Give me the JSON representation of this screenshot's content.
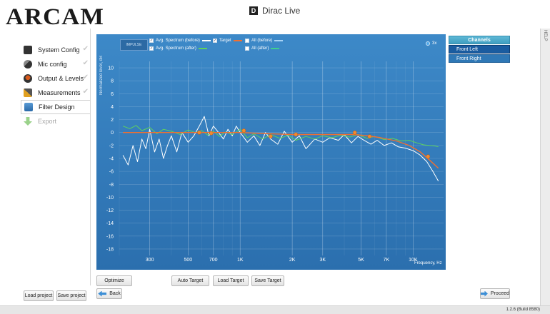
{
  "brand": {
    "logo": "ARCAM",
    "app_title": "Dirac Live",
    "app_logo_glyph": "D"
  },
  "help": {
    "label": "HELP"
  },
  "sidebar": {
    "items": [
      {
        "label": "System Config",
        "icon": "speaker-icon",
        "state": "done"
      },
      {
        "label": "Mic config",
        "icon": "microphone-icon",
        "state": "done"
      },
      {
        "label": "Output & Levels",
        "icon": "volume-icon",
        "state": "done"
      },
      {
        "label": "Measurements",
        "icon": "microphone-stand-icon",
        "state": "done"
      },
      {
        "label": "Filter Design",
        "icon": "filter-icon",
        "state": "active"
      },
      {
        "label": "Export",
        "icon": "export-arrow-icon",
        "state": "disabled"
      }
    ],
    "check_glyph": "✔"
  },
  "plot": {
    "impulse_label": "IMPULSE",
    "legend": [
      {
        "label": "Avg. Spectrum (before)",
        "color": "#ffffff",
        "checked": true
      },
      {
        "label": "Target",
        "color": "#f07030",
        "checked": true
      },
      {
        "label": "All (before)",
        "color": "#a6d2f5",
        "checked": false
      },
      {
        "label": "Avg. Spectrum (after)",
        "color": "#5ed25e",
        "checked": true
      },
      {
        "label": "All (after)",
        "color": "#3fcf8e",
        "checked": false
      }
    ],
    "zoom_label": "3x"
  },
  "chart_data": {
    "type": "line",
    "xlabel": "Frequency, Hz",
    "ylabel": "Normalized level, dB",
    "x_scale": "log",
    "xlim": [
      200,
      15000
    ],
    "ylim": [
      -19,
      11
    ],
    "x_ticks": [
      300,
      500,
      700,
      1000,
      2000,
      3000,
      5000,
      7000,
      10000
    ],
    "x_tick_labels": [
      "300",
      "500",
      "700",
      "1K",
      "2K",
      "3K",
      "5K",
      "7K",
      "10K"
    ],
    "y_ticks": [
      10,
      8,
      6,
      4,
      2,
      0,
      -2,
      -4,
      -6,
      -8,
      -10,
      -12,
      -14,
      -16,
      -18
    ],
    "grid": true,
    "series": [
      {
        "name": "Avg. Spectrum (before)",
        "color": "#ffffff",
        "x": [
          210,
          225,
          240,
          255,
          270,
          285,
          300,
          320,
          340,
          360,
          380,
          400,
          430,
          460,
          500,
          540,
          580,
          620,
          660,
          700,
          750,
          800,
          850,
          900,
          950,
          1000,
          1100,
          1200,
          1300,
          1400,
          1500,
          1650,
          1800,
          2000,
          2200,
          2400,
          2700,
          3000,
          3300,
          3700,
          4000,
          4400,
          4800,
          5200,
          5700,
          6200,
          6800,
          7500,
          8200,
          9000,
          10000,
          11000,
          12000,
          13000,
          14000
        ],
        "y": [
          -3.5,
          -5,
          -2,
          -4.5,
          -1,
          -2.5,
          0.5,
          -3,
          -1,
          -4,
          -2,
          -0.5,
          -3,
          0,
          -1.5,
          -0.5,
          1,
          2.5,
          -0.5,
          1,
          0,
          -1,
          0.5,
          -0.5,
          1,
          0,
          -1.5,
          -0.5,
          -2,
          0,
          -1,
          -1.8,
          0.2,
          -1.5,
          -0.5,
          -2.5,
          -1,
          -1.5,
          -0.8,
          -1.2,
          -0.3,
          -1.6,
          -0.6,
          -1.2,
          -1.8,
          -1.2,
          -2,
          -1.6,
          -2.2,
          -2.4,
          -2.8,
          -3.5,
          -4.5,
          -6,
          -7.5
        ]
      },
      {
        "name": "Avg. Spectrum (after)",
        "color": "#5ed25e",
        "x": [
          210,
          230,
          250,
          270,
          300,
          330,
          360,
          400,
          450,
          500,
          550,
          600,
          650,
          700,
          760,
          820,
          900,
          1000,
          1100,
          1200,
          1350,
          1500,
          1700,
          1900,
          2100,
          2400,
          2700,
          3000,
          3400,
          3800,
          4300,
          4800,
          5400,
          6000,
          6800,
          7600,
          8500,
          9500,
          10500,
          11500,
          12500,
          13500,
          14000
        ],
        "y": [
          1,
          0.6,
          1.1,
          0.3,
          0.8,
          -0.2,
          0.5,
          0.2,
          -0.3,
          0.4,
          0,
          0.3,
          -0.4,
          0.2,
          -0.6,
          0.1,
          -0.3,
          0.5,
          -0.8,
          -0.2,
          -1,
          -0.3,
          -0.9,
          -0.4,
          -1.2,
          -0.6,
          -1,
          -0.5,
          -0.8,
          -0.4,
          -0.7,
          -0.3,
          -0.9,
          -0.6,
          -1.1,
          -0.9,
          -1.3,
          -1.2,
          -1.6,
          -1.9,
          -2,
          -2.1,
          -2.2
        ]
      },
      {
        "name": "Target",
        "color": "#f07030",
        "x": [
          210,
          300,
          500,
          700,
          1000,
          1500,
          2000,
          3000,
          4500,
          5500,
          6500,
          8000,
          9500,
          11000,
          12500,
          14000
        ],
        "y": [
          0,
          0,
          0,
          0,
          0,
          -0.2,
          -0.3,
          -0.3,
          -0.3,
          -0.5,
          -0.8,
          -1.3,
          -2,
          -3,
          -4.3,
          -5.5
        ],
        "control_points_x": [
          580,
          680,
          1050,
          1500,
          2100,
          4600,
          5600,
          12200
        ],
        "control_points_y": [
          0,
          -0.1,
          0.3,
          -0.6,
          -0.3,
          0,
          -0.6,
          -3.7
        ]
      }
    ]
  },
  "channels": {
    "header": "Channels",
    "items": [
      "Front Left",
      "Front Right"
    ],
    "selected": 0
  },
  "buttons": {
    "optimize": "Optimize",
    "auto_target": "Auto Target",
    "load_target": "Load Target",
    "save_target": "Save Target",
    "back": "Back",
    "proceed": "Proceed",
    "load_project": "Load project",
    "save_project": "Save project"
  },
  "status": {
    "build": "1.2.6 (Build 8580)"
  }
}
